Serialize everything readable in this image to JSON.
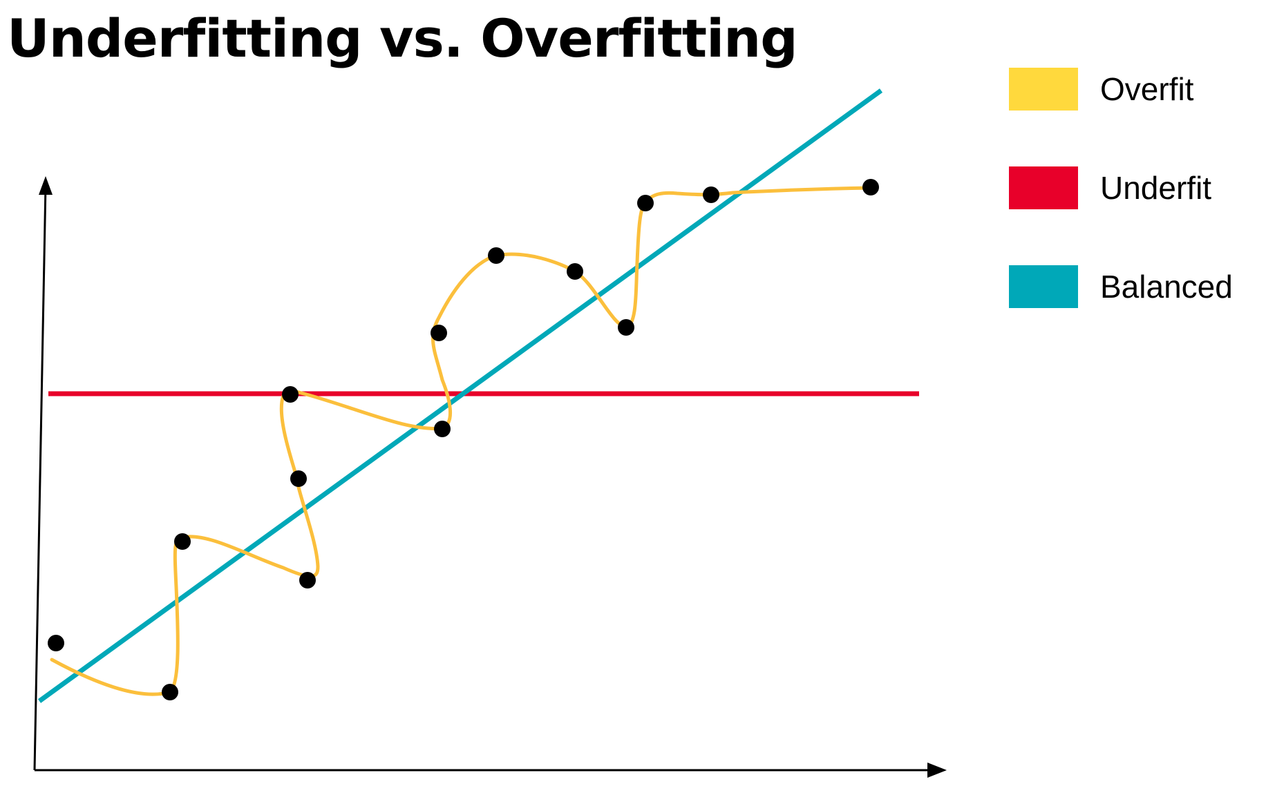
{
  "title": "Underfitting vs. Overfitting",
  "legend": {
    "items": [
      {
        "label": "Overfit",
        "color": "#FFD93D"
      },
      {
        "label": "Underfit",
        "color": "#E8002A"
      },
      {
        "label": "Balanced",
        "color": "#00A8B8"
      }
    ]
  },
  "colors": {
    "overfit_curve": "#FBBF3C",
    "underfit_line": "#E8002A",
    "balanced_line": "#00A8B8",
    "points": "#000000",
    "axes": "#000000"
  }
}
